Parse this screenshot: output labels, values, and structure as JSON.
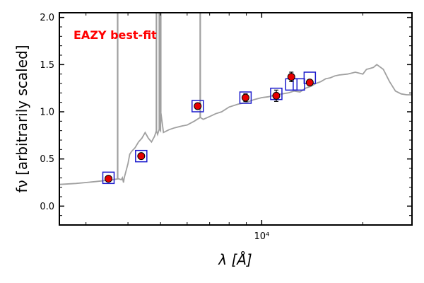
{
  "chart_data": {
    "type": "scatter",
    "title": "",
    "annotation": "EAZY best-fit",
    "xlabel": "λ [Å]",
    "ylabel": "fν [arbitrarily scaled]",
    "x_scale": "log",
    "xlim": [
      2500,
      28000
    ],
    "ylim": [
      -0.2,
      2.05
    ],
    "x_ticks": [
      {
        "value": 10000,
        "label": "10⁴"
      }
    ],
    "y_ticks": [
      {
        "value": 0.0,
        "label": "0.0"
      },
      {
        "value": 0.5,
        "label": "0.5"
      },
      {
        "value": 1.0,
        "label": "1.0"
      },
      {
        "value": 1.5,
        "label": "1.5"
      },
      {
        "value": 2.0,
        "label": "2.0"
      }
    ],
    "grid": false,
    "colors": {
      "model": "#a0a0a0",
      "observed": "#e60000",
      "model_box": "#1a1acc",
      "annotation": "#ff0000"
    },
    "series": [
      {
        "kind": "line",
        "x": [
          2500,
          2800,
          3200,
          3400,
          3600,
          3750,
          3820,
          3850,
          3880,
          3900,
          4000,
          4050,
          4100,
          4200,
          4300,
          4400,
          4500,
          4600,
          4700,
          4800,
          4860,
          4900,
          4960,
          5000,
          5007,
          5100,
          5300,
          5500,
          5800,
          6000,
          6300,
          6563,
          6700,
          7000,
          7300,
          7600,
          8000,
          8500,
          9000,
          9500,
          10000,
          10500,
          11000,
          11500,
          12000,
          12500,
          13000,
          13500,
          14000,
          14500,
          15000,
          15500,
          16000,
          16500,
          17000,
          18000,
          19000,
          20000,
          20500,
          21000,
          21500,
          22000,
          23000,
          24000,
          25000,
          26000,
          27000,
          28000
        ],
        "y": [
          0.23,
          0.24,
          0.26,
          0.27,
          0.28,
          0.29,
          0.28,
          0.3,
          0.25,
          0.3,
          0.45,
          0.55,
          0.58,
          0.62,
          0.68,
          0.72,
          0.78,
          0.72,
          0.68,
          0.74,
          0.8,
          0.76,
          0.82,
          0.8,
          1.0,
          0.78,
          0.81,
          0.83,
          0.85,
          0.86,
          0.9,
          0.94,
          0.92,
          0.95,
          0.98,
          1.0,
          1.05,
          1.08,
          1.1,
          1.13,
          1.15,
          1.16,
          1.18,
          1.19,
          1.2,
          1.22,
          1.21,
          1.25,
          1.27,
          1.3,
          1.32,
          1.35,
          1.36,
          1.38,
          1.39,
          1.4,
          1.42,
          1.4,
          1.45,
          1.46,
          1.47,
          1.5,
          1.45,
          1.32,
          1.22,
          1.19,
          1.18,
          1.18
        ]
      },
      {
        "kind": "emission_lines",
        "x": [
          3727,
          4861,
          4959,
          5007,
          6563
        ],
        "y_top": [
          2.05,
          2.05,
          2.05,
          2.05,
          2.05
        ]
      },
      {
        "kind": "model_boxes",
        "x": [
          3500,
          4380,
          6450,
          8950,
          11050,
          12250,
          12900,
          13900
        ],
        "y": [
          0.3,
          0.53,
          1.06,
          1.15,
          1.19,
          1.29,
          1.29,
          1.36
        ]
      },
      {
        "kind": "observed",
        "x": [
          3500,
          4380,
          6450,
          8950,
          11050,
          12250,
          13900
        ],
        "y": [
          0.29,
          0.53,
          1.06,
          1.15,
          1.17,
          1.37,
          1.31
        ],
        "yerr": [
          0.02,
          0.02,
          0.03,
          0.04,
          0.06,
          0.05,
          0.03
        ]
      }
    ]
  }
}
